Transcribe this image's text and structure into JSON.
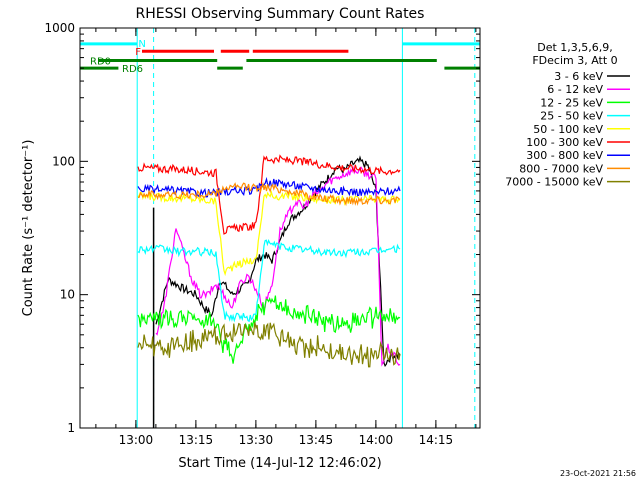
{
  "chart_data": {
    "type": "line",
    "title": "RHESSI Observing Summary Count Rates",
    "xlabel": "Start Time (14-Jul-12 12:46:02)",
    "ylabel": "Count Rate (s⁻¹ detector⁻¹)",
    "yscale": "log",
    "ylim": [
      1,
      1000
    ],
    "xlim_minutes": [
      0,
      100
    ],
    "x_ticks": [
      "13:00",
      "13:15",
      "13:30",
      "13:45",
      "14:00",
      "14:15"
    ],
    "x_tick_minutes": [
      13.97,
      28.97,
      43.97,
      58.97,
      73.97,
      88.97
    ],
    "y_ticks": [
      "1",
      "10",
      "100",
      "1000"
    ],
    "y_tick_values": [
      1,
      10,
      100,
      1000
    ],
    "legend_header": [
      "Det 1,3,5,6,9,",
      "FDecim 3, Att 0"
    ],
    "series": [
      {
        "name": "3 - 6 keV",
        "color": "#000000",
        "points": [
          [
            19,
            6
          ],
          [
            22,
            13
          ],
          [
            24,
            12
          ],
          [
            26,
            11
          ],
          [
            29,
            10
          ],
          [
            31,
            8
          ],
          [
            33,
            7
          ],
          [
            35,
            13
          ],
          [
            37,
            11
          ],
          [
            38,
            10
          ],
          [
            40,
            11
          ],
          [
            42,
            12
          ],
          [
            44,
            18
          ],
          [
            46,
            20
          ],
          [
            48,
            18
          ],
          [
            50,
            25
          ],
          [
            52,
            35
          ],
          [
            54,
            40
          ],
          [
            56,
            45
          ],
          [
            58,
            55
          ],
          [
            60,
            65
          ],
          [
            62,
            75
          ],
          [
            64,
            90
          ],
          [
            66,
            85
          ],
          [
            68,
            95
          ],
          [
            70,
            100
          ],
          [
            72,
            92
          ],
          [
            74,
            60
          ],
          [
            76,
            3
          ],
          [
            78,
            3.5
          ],
          [
            80,
            3.5
          ]
        ]
      },
      {
        "name": "6 - 12 keV",
        "color": "#ff00ff",
        "points": [
          [
            19,
            5
          ],
          [
            21,
            8
          ],
          [
            23,
            20
          ],
          [
            24,
            32
          ],
          [
            25,
            25
          ],
          [
            26,
            20
          ],
          [
            28,
            13
          ],
          [
            30,
            10
          ],
          [
            32,
            10
          ],
          [
            34,
            12
          ],
          [
            36,
            10
          ],
          [
            38,
            8
          ],
          [
            40,
            12
          ],
          [
            42,
            14
          ],
          [
            44,
            11
          ],
          [
            46,
            8
          ],
          [
            48,
            12
          ],
          [
            50,
            30
          ],
          [
            52,
            40
          ],
          [
            54,
            50
          ],
          [
            56,
            45
          ],
          [
            58,
            55
          ],
          [
            60,
            60
          ],
          [
            62,
            70
          ],
          [
            64,
            75
          ],
          [
            66,
            80
          ],
          [
            68,
            85
          ],
          [
            70,
            85
          ],
          [
            72,
            80
          ],
          [
            74,
            75
          ],
          [
            75.5,
            3
          ],
          [
            77,
            4
          ],
          [
            80,
            3
          ]
        ]
      },
      {
        "name": "12 - 25 keV",
        "color": "#00ff00",
        "points": [
          [
            14.5,
            6.5
          ],
          [
            20,
            6.7
          ],
          [
            25,
            6.8
          ],
          [
            30,
            6.6
          ],
          [
            34,
            6.5
          ],
          [
            36,
            4
          ],
          [
            38,
            3.5
          ],
          [
            40,
            4.2
          ],
          [
            42,
            5.5
          ],
          [
            44,
            7
          ],
          [
            46,
            8
          ],
          [
            48,
            9
          ],
          [
            50,
            8.5
          ],
          [
            52,
            7.5
          ],
          [
            56,
            7
          ],
          [
            60,
            6.5
          ],
          [
            65,
            6.2
          ],
          [
            70,
            6.5
          ],
          [
            74,
            6.8
          ],
          [
            76,
            6.5
          ],
          [
            80,
            6.7
          ]
        ]
      },
      {
        "name": "25 - 50 keV",
        "color": "#00ffff",
        "points": [
          [
            14.5,
            22
          ],
          [
            20,
            22
          ],
          [
            25,
            21
          ],
          [
            30,
            21
          ],
          [
            34,
            20.5
          ],
          [
            36,
            7
          ],
          [
            38,
            6.8
          ],
          [
            40,
            7
          ],
          [
            42,
            6.6
          ],
          [
            44,
            7
          ],
          [
            46,
            24
          ],
          [
            48,
            24
          ],
          [
            50,
            23
          ],
          [
            55,
            22
          ],
          [
            60,
            21
          ],
          [
            65,
            20.5
          ],
          [
            70,
            21
          ],
          [
            74,
            21
          ],
          [
            76,
            22
          ],
          [
            80,
            22
          ]
        ]
      },
      {
        "name": "50 - 100 keV",
        "color": "#ffff00",
        "points": [
          [
            14.5,
            55
          ],
          [
            20,
            54
          ],
          [
            25,
            53
          ],
          [
            30,
            52
          ],
          [
            34,
            50
          ],
          [
            36,
            15
          ],
          [
            38,
            16
          ],
          [
            40,
            17
          ],
          [
            42,
            18
          ],
          [
            44,
            18
          ],
          [
            46,
            55
          ],
          [
            50,
            55
          ],
          [
            55,
            54
          ],
          [
            60,
            52
          ],
          [
            65,
            51
          ],
          [
            70,
            52
          ],
          [
            74,
            52
          ],
          [
            76,
            52
          ],
          [
            80,
            51
          ]
        ]
      },
      {
        "name": "100 - 300 keV",
        "color": "#ff0000",
        "points": [
          [
            14.5,
            90
          ],
          [
            20,
            88
          ],
          [
            25,
            87
          ],
          [
            30,
            84
          ],
          [
            34,
            82
          ],
          [
            36,
            30
          ],
          [
            38,
            31
          ],
          [
            40,
            32
          ],
          [
            42,
            32
          ],
          [
            44,
            33
          ],
          [
            46,
            105
          ],
          [
            50,
            103
          ],
          [
            55,
            100
          ],
          [
            60,
            95
          ],
          [
            65,
            90
          ],
          [
            70,
            88
          ],
          [
            74,
            85
          ],
          [
            76,
            84
          ],
          [
            80,
            86
          ]
        ]
      },
      {
        "name": "300 - 800 keV",
        "color": "#0000ff",
        "points": [
          [
            14.5,
            62
          ],
          [
            20,
            61
          ],
          [
            25,
            60
          ],
          [
            30,
            58
          ],
          [
            34,
            58
          ],
          [
            36,
            59
          ],
          [
            40,
            60
          ],
          [
            44,
            60
          ],
          [
            46,
            70
          ],
          [
            50,
            69
          ],
          [
            55,
            65
          ],
          [
            60,
            62
          ],
          [
            65,
            60
          ],
          [
            70,
            59
          ],
          [
            74,
            58
          ],
          [
            76,
            60
          ],
          [
            80,
            60
          ]
        ]
      },
      {
        "name": "800 - 7000 keV",
        "color": "#ff8c00",
        "points": [
          [
            14.5,
            57
          ],
          [
            20,
            56
          ],
          [
            25,
            56
          ],
          [
            30,
            56
          ],
          [
            34,
            57
          ],
          [
            36,
            63
          ],
          [
            40,
            64
          ],
          [
            44,
            64
          ],
          [
            46,
            64
          ],
          [
            50,
            62
          ],
          [
            55,
            57
          ],
          [
            60,
            53
          ],
          [
            65,
            51
          ],
          [
            70,
            51
          ],
          [
            74,
            52
          ],
          [
            76,
            51
          ],
          [
            80,
            52
          ]
        ]
      },
      {
        "name": "7000 - 15000 keV",
        "color": "#808000",
        "points": [
          [
            14.5,
            4
          ],
          [
            20,
            4.2
          ],
          [
            25,
            4.1
          ],
          [
            30,
            4.5
          ],
          [
            34,
            5
          ],
          [
            36,
            5.5
          ],
          [
            40,
            5.6
          ],
          [
            44,
            5.5
          ],
          [
            46,
            5.5
          ],
          [
            50,
            5
          ],
          [
            55,
            4.3
          ],
          [
            60,
            4
          ],
          [
            65,
            3.6
          ],
          [
            70,
            3.5
          ],
          [
            74,
            3.4
          ],
          [
            76,
            3.5
          ],
          [
            80,
            3.6
          ]
        ]
      }
    ],
    "state_bars": [
      {
        "label": "N",
        "color": "#00ffff",
        "level": 760,
        "segments": [
          [
            0,
            14.3
          ],
          [
            80.6,
            100
          ]
        ]
      },
      {
        "label": "F",
        "color": "#ff0000",
        "level": 670,
        "segments": [
          [
            15.5,
            33.5
          ],
          [
            35.2,
            42.3
          ],
          [
            43.2,
            67.1
          ]
        ]
      },
      {
        "label": "RD0",
        "color": "#008000",
        "level": 570,
        "segments": [
          [
            4.6,
            34.3
          ],
          [
            41.6,
            89.2
          ]
        ]
      },
      {
        "label": "RD6",
        "color": "#008000",
        "level": 500,
        "segments": [
          [
            0,
            9.6
          ],
          [
            34.3,
            40.7
          ],
          [
            91.1,
            100
          ]
        ]
      }
    ],
    "markers": {
      "cyan_solid_minutes": [
        0,
        14.3,
        80.6
      ],
      "cyan_dashed_minutes": [
        18.4,
        98.7
      ],
      "black_solid_minutes": [
        18.4
      ]
    },
    "corner_text": "23-Oct-2021 21:56"
  }
}
